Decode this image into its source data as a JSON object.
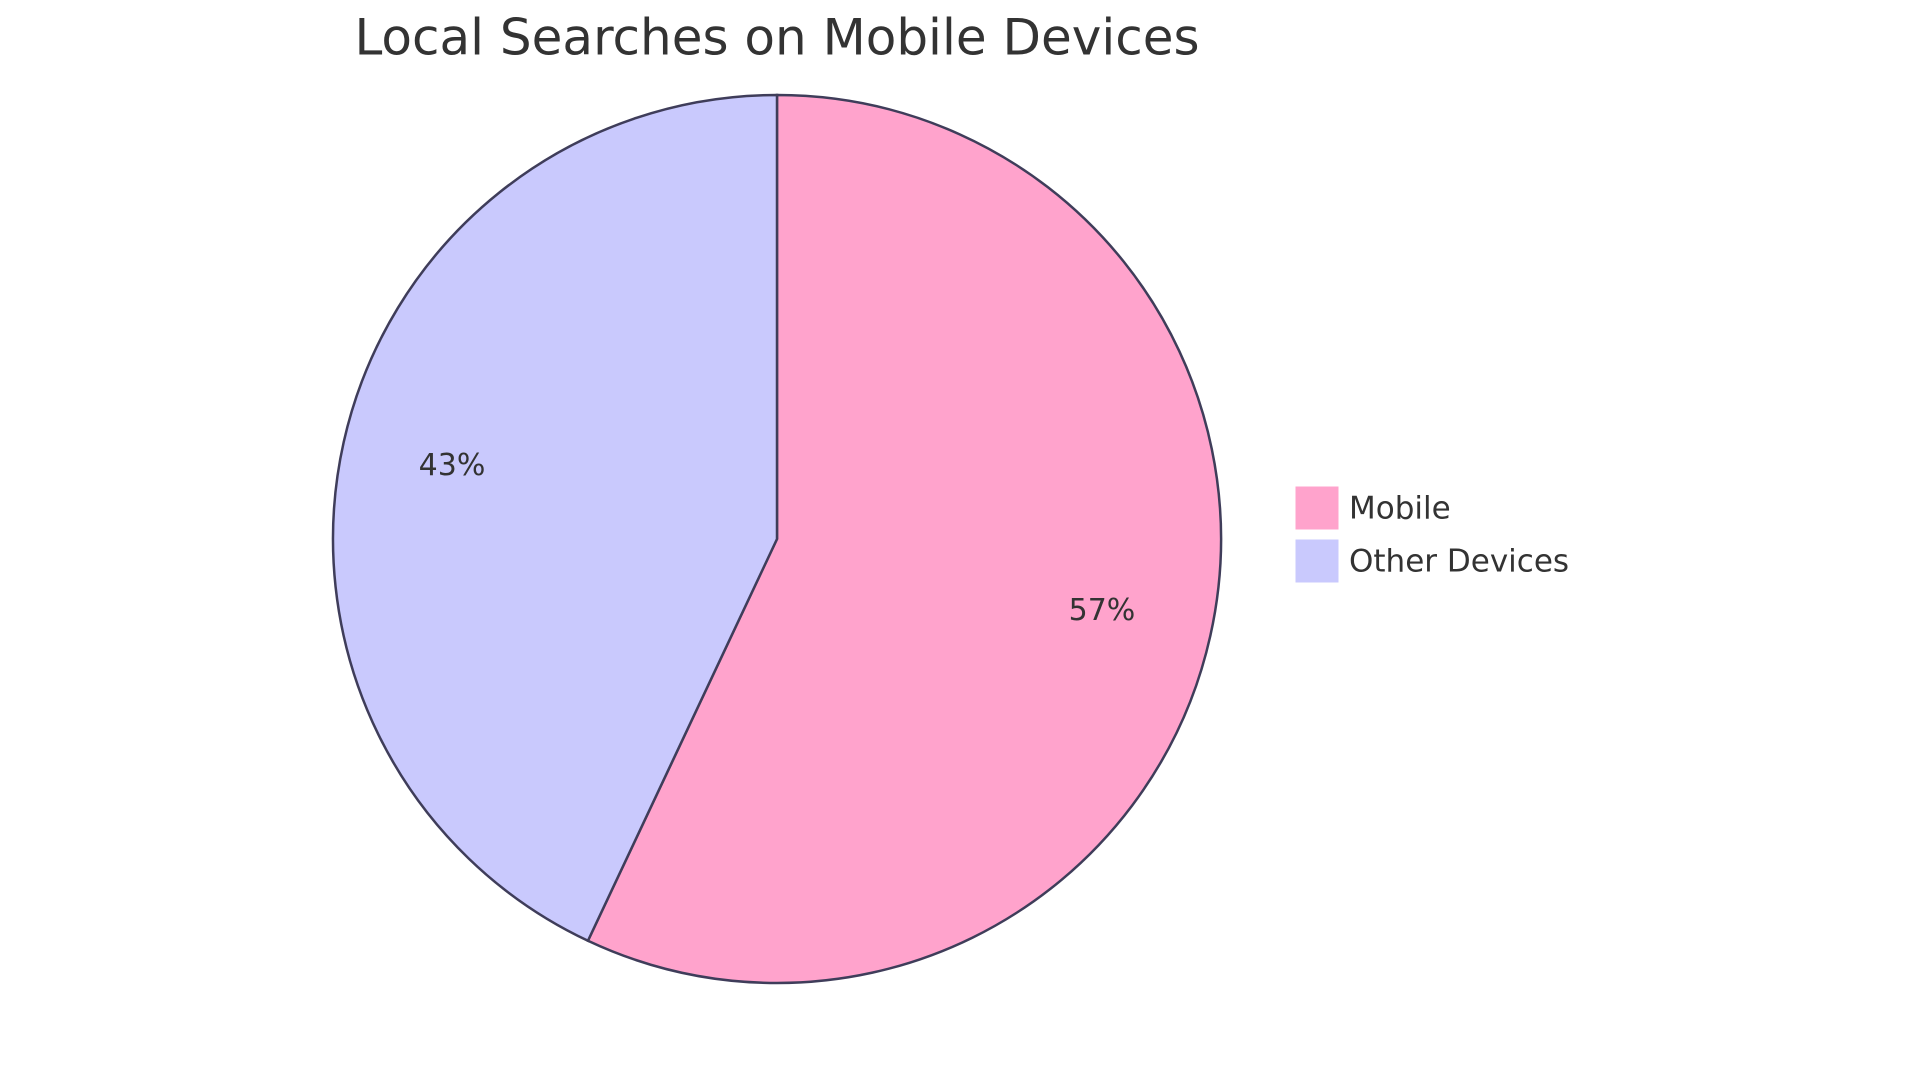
{
  "chart_data": {
    "type": "pie",
    "title": "Local Searches on Mobile Devices",
    "categories": [
      "Mobile",
      "Other Devices"
    ],
    "values": [
      57,
      43
    ],
    "value_labels": [
      "57%",
      "43%"
    ],
    "colors": [
      "#ffa3cc",
      "#c9c9fd"
    ],
    "legend": "right"
  }
}
